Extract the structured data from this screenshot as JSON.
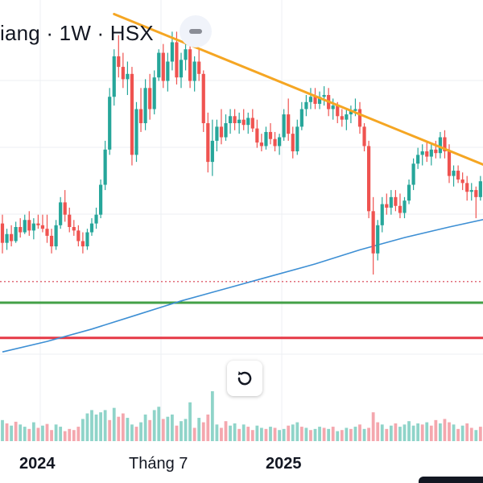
{
  "header": {
    "title": "iang · 1W · HSX"
  },
  "colors": {
    "up": "#26a69a",
    "down": "#ef5350",
    "vol_up": "#8fd4c9",
    "vol_down": "#f4a7ae",
    "trendline": "#f5a623",
    "ma": "#3d8fd4",
    "support": "#43a047",
    "resistance": "#e53946",
    "dotted": "#e26d7a",
    "grid": "#eceff3"
  },
  "x_axis": {
    "labels": [
      "2024",
      "Tháng 7",
      "2025"
    ]
  },
  "icons": {
    "collapse": "minus-icon",
    "reset": "refresh-icon"
  },
  "chart_data": {
    "type": "candlestick",
    "interval": "1W",
    "exchange": "HSX",
    "x_labels": [
      "2024",
      "Tháng 7",
      "2025"
    ],
    "candles": [
      {
        "o": 253,
        "h": 258,
        "l": 236,
        "c": 242
      },
      {
        "o": 242,
        "h": 250,
        "l": 238,
        "c": 247
      },
      {
        "o": 247,
        "h": 252,
        "l": 240,
        "c": 243
      },
      {
        "o": 243,
        "h": 254,
        "l": 242,
        "c": 251
      },
      {
        "o": 251,
        "h": 256,
        "l": 245,
        "c": 248
      },
      {
        "o": 248,
        "h": 258,
        "l": 247,
        "c": 255
      },
      {
        "o": 255,
        "h": 260,
        "l": 246,
        "c": 249
      },
      {
        "o": 249,
        "h": 256,
        "l": 244,
        "c": 253
      },
      {
        "o": 253,
        "h": 258,
        "l": 250,
        "c": 252
      },
      {
        "o": 252,
        "h": 258,
        "l": 248,
        "c": 250
      },
      {
        "o": 250,
        "h": 258,
        "l": 242,
        "c": 246
      },
      {
        "o": 246,
        "h": 250,
        "l": 236,
        "c": 240
      },
      {
        "o": 240,
        "h": 255,
        "l": 238,
        "c": 252
      },
      {
        "o": 252,
        "h": 268,
        "l": 250,
        "c": 265
      },
      {
        "o": 265,
        "h": 272,
        "l": 254,
        "c": 258
      },
      {
        "o": 258,
        "h": 262,
        "l": 248,
        "c": 251
      },
      {
        "o": 251,
        "h": 255,
        "l": 246,
        "c": 249
      },
      {
        "o": 249,
        "h": 252,
        "l": 240,
        "c": 243
      },
      {
        "o": 243,
        "h": 248,
        "l": 236,
        "c": 240
      },
      {
        "o": 240,
        "h": 250,
        "l": 238,
        "c": 248
      },
      {
        "o": 248,
        "h": 256,
        "l": 246,
        "c": 253
      },
      {
        "o": 253,
        "h": 262,
        "l": 250,
        "c": 258
      },
      {
        "o": 258,
        "h": 278,
        "l": 256,
        "c": 275
      },
      {
        "o": 275,
        "h": 300,
        "l": 272,
        "c": 295
      },
      {
        "o": 295,
        "h": 330,
        "l": 292,
        "c": 325
      },
      {
        "o": 325,
        "h": 352,
        "l": 320,
        "c": 348
      },
      {
        "o": 348,
        "h": 360,
        "l": 336,
        "c": 342
      },
      {
        "o": 342,
        "h": 350,
        "l": 330,
        "c": 335
      },
      {
        "o": 335,
        "h": 345,
        "l": 326,
        "c": 338
      },
      {
        "o": 338,
        "h": 342,
        "l": 286,
        "c": 292
      },
      {
        "o": 292,
        "h": 322,
        "l": 288,
        "c": 318
      },
      {
        "o": 318,
        "h": 330,
        "l": 305,
        "c": 310
      },
      {
        "o": 310,
        "h": 335,
        "l": 306,
        "c": 330
      },
      {
        "o": 330,
        "h": 338,
        "l": 312,
        "c": 318
      },
      {
        "o": 318,
        "h": 340,
        "l": 315,
        "c": 336
      },
      {
        "o": 336,
        "h": 352,
        "l": 334,
        "c": 350
      },
      {
        "o": 350,
        "h": 355,
        "l": 330,
        "c": 334
      },
      {
        "o": 334,
        "h": 350,
        "l": 328,
        "c": 345
      },
      {
        "o": 345,
        "h": 362,
        "l": 340,
        "c": 356
      },
      {
        "o": 356,
        "h": 362,
        "l": 332,
        "c": 336
      },
      {
        "o": 336,
        "h": 350,
        "l": 330,
        "c": 346
      },
      {
        "o": 346,
        "h": 358,
        "l": 340,
        "c": 352
      },
      {
        "o": 352,
        "h": 356,
        "l": 330,
        "c": 334
      },
      {
        "o": 334,
        "h": 348,
        "l": 328,
        "c": 345
      },
      {
        "o": 345,
        "h": 352,
        "l": 334,
        "c": 338
      },
      {
        "o": 338,
        "h": 340,
        "l": 305,
        "c": 310
      },
      {
        "o": 310,
        "h": 316,
        "l": 282,
        "c": 288
      },
      {
        "o": 288,
        "h": 312,
        "l": 280,
        "c": 300
      },
      {
        "o": 300,
        "h": 312,
        "l": 294,
        "c": 308
      },
      {
        "o": 308,
        "h": 318,
        "l": 298,
        "c": 302
      },
      {
        "o": 302,
        "h": 315,
        "l": 300,
        "c": 310
      },
      {
        "o": 310,
        "h": 318,
        "l": 304,
        "c": 314
      },
      {
        "o": 314,
        "h": 318,
        "l": 306,
        "c": 310
      },
      {
        "o": 310,
        "h": 316,
        "l": 304,
        "c": 312
      },
      {
        "o": 312,
        "h": 318,
        "l": 306,
        "c": 309
      },
      {
        "o": 309,
        "h": 316,
        "l": 304,
        "c": 313
      },
      {
        "o": 313,
        "h": 318,
        "l": 305,
        "c": 307
      },
      {
        "o": 307,
        "h": 312,
        "l": 296,
        "c": 299
      },
      {
        "o": 299,
        "h": 304,
        "l": 294,
        "c": 297
      },
      {
        "o": 297,
        "h": 308,
        "l": 295,
        "c": 305
      },
      {
        "o": 305,
        "h": 310,
        "l": 298,
        "c": 301
      },
      {
        "o": 301,
        "h": 305,
        "l": 294,
        "c": 297
      },
      {
        "o": 297,
        "h": 304,
        "l": 292,
        "c": 302
      },
      {
        "o": 302,
        "h": 318,
        "l": 300,
        "c": 315
      },
      {
        "o": 315,
        "h": 324,
        "l": 300,
        "c": 304
      },
      {
        "o": 304,
        "h": 308,
        "l": 290,
        "c": 294
      },
      {
        "o": 294,
        "h": 312,
        "l": 292,
        "c": 308
      },
      {
        "o": 308,
        "h": 322,
        "l": 306,
        "c": 318
      },
      {
        "o": 318,
        "h": 326,
        "l": 314,
        "c": 322
      },
      {
        "o": 322,
        "h": 330,
        "l": 318,
        "c": 325
      },
      {
        "o": 325,
        "h": 330,
        "l": 318,
        "c": 321
      },
      {
        "o": 321,
        "h": 328,
        "l": 318,
        "c": 325
      },
      {
        "o": 325,
        "h": 331,
        "l": 320,
        "c": 326
      },
      {
        "o": 326,
        "h": 330,
        "l": 314,
        "c": 318
      },
      {
        "o": 318,
        "h": 324,
        "l": 312,
        "c": 320
      },
      {
        "o": 320,
        "h": 322,
        "l": 310,
        "c": 314
      },
      {
        "o": 314,
        "h": 318,
        "l": 308,
        "c": 312
      },
      {
        "o": 312,
        "h": 318,
        "l": 306,
        "c": 315
      },
      {
        "o": 315,
        "h": 320,
        "l": 310,
        "c": 317
      },
      {
        "o": 317,
        "h": 324,
        "l": 314,
        "c": 318
      },
      {
        "o": 318,
        "h": 322,
        "l": 304,
        "c": 308
      },
      {
        "o": 308,
        "h": 310,
        "l": 294,
        "c": 297
      },
      {
        "o": 297,
        "h": 300,
        "l": 256,
        "c": 260
      },
      {
        "o": 260,
        "h": 268,
        "l": 224,
        "c": 236
      },
      {
        "o": 236,
        "h": 255,
        "l": 232,
        "c": 252
      },
      {
        "o": 252,
        "h": 268,
        "l": 248,
        "c": 264
      },
      {
        "o": 264,
        "h": 270,
        "l": 258,
        "c": 262
      },
      {
        "o": 262,
        "h": 272,
        "l": 258,
        "c": 268
      },
      {
        "o": 268,
        "h": 272,
        "l": 260,
        "c": 263
      },
      {
        "o": 263,
        "h": 270,
        "l": 256,
        "c": 259
      },
      {
        "o": 259,
        "h": 268,
        "l": 256,
        "c": 266
      },
      {
        "o": 266,
        "h": 278,
        "l": 264,
        "c": 275
      },
      {
        "o": 275,
        "h": 290,
        "l": 272,
        "c": 287
      },
      {
        "o": 287,
        "h": 296,
        "l": 284,
        "c": 292
      },
      {
        "o": 292,
        "h": 298,
        "l": 286,
        "c": 294
      },
      {
        "o": 294,
        "h": 300,
        "l": 288,
        "c": 291
      },
      {
        "o": 291,
        "h": 298,
        "l": 286,
        "c": 295
      },
      {
        "o": 295,
        "h": 300,
        "l": 290,
        "c": 293
      },
      {
        "o": 293,
        "h": 305,
        "l": 290,
        "c": 302
      },
      {
        "o": 302,
        "h": 306,
        "l": 290,
        "c": 294
      },
      {
        "o": 294,
        "h": 298,
        "l": 276,
        "c": 280
      },
      {
        "o": 280,
        "h": 286,
        "l": 274,
        "c": 283
      },
      {
        "o": 283,
        "h": 286,
        "l": 276,
        "c": 278
      },
      {
        "o": 278,
        "h": 282,
        "l": 272,
        "c": 276
      },
      {
        "o": 276,
        "h": 280,
        "l": 266,
        "c": 271
      },
      {
        "o": 271,
        "h": 276,
        "l": 266,
        "c": 272
      },
      {
        "o": 272,
        "h": 274,
        "l": 256,
        "c": 268
      },
      {
        "o": 268,
        "h": 280,
        "l": 266,
        "c": 277
      },
      {
        "o": 277,
        "h": 282,
        "l": 268,
        "c": 270
      },
      {
        "o": 270,
        "h": 288,
        "l": 266,
        "c": 285
      }
    ],
    "volume": [
      {
        "v": 38,
        "up": true
      },
      {
        "v": 32,
        "up": false
      },
      {
        "v": 28,
        "up": true
      },
      {
        "v": 35,
        "up": false
      },
      {
        "v": 30,
        "up": true
      },
      {
        "v": 26,
        "up": true
      },
      {
        "v": 22,
        "up": false
      },
      {
        "v": 34,
        "up": true
      },
      {
        "v": 24,
        "up": false
      },
      {
        "v": 28,
        "up": true
      },
      {
        "v": 31,
        "up": false
      },
      {
        "v": 20,
        "up": false
      },
      {
        "v": 30,
        "up": true
      },
      {
        "v": 26,
        "up": true
      },
      {
        "v": 18,
        "up": false
      },
      {
        "v": 22,
        "up": false
      },
      {
        "v": 20,
        "up": false
      },
      {
        "v": 26,
        "up": false
      },
      {
        "v": 40,
        "up": true
      },
      {
        "v": 50,
        "up": true
      },
      {
        "v": 56,
        "up": true
      },
      {
        "v": 48,
        "up": true
      },
      {
        "v": 52,
        "up": true
      },
      {
        "v": 56,
        "up": true
      },
      {
        "v": 38,
        "up": false
      },
      {
        "v": 60,
        "up": true
      },
      {
        "v": 44,
        "up": false
      },
      {
        "v": 50,
        "up": false
      },
      {
        "v": 42,
        "up": true
      },
      {
        "v": 30,
        "up": true
      },
      {
        "v": 26,
        "up": false
      },
      {
        "v": 34,
        "up": true
      },
      {
        "v": 48,
        "up": true
      },
      {
        "v": 38,
        "up": false
      },
      {
        "v": 56,
        "up": true
      },
      {
        "v": 62,
        "up": true
      },
      {
        "v": 40,
        "up": false
      },
      {
        "v": 44,
        "up": true
      },
      {
        "v": 48,
        "up": true
      },
      {
        "v": 28,
        "up": false
      },
      {
        "v": 36,
        "up": true
      },
      {
        "v": 40,
        "up": true
      },
      {
        "v": 70,
        "up": true
      },
      {
        "v": 24,
        "up": false
      },
      {
        "v": 42,
        "up": true
      },
      {
        "v": 34,
        "up": false
      },
      {
        "v": 48,
        "up": false
      },
      {
        "v": 90,
        "up": true
      },
      {
        "v": 30,
        "up": true
      },
      {
        "v": 24,
        "up": false
      },
      {
        "v": 36,
        "up": false
      },
      {
        "v": 28,
        "up": true
      },
      {
        "v": 32,
        "up": true
      },
      {
        "v": 22,
        "up": false
      },
      {
        "v": 30,
        "up": true
      },
      {
        "v": 26,
        "up": false
      },
      {
        "v": 20,
        "up": false
      },
      {
        "v": 28,
        "up": true
      },
      {
        "v": 24,
        "up": true
      },
      {
        "v": 22,
        "up": false
      },
      {
        "v": 26,
        "up": true
      },
      {
        "v": 24,
        "up": false
      },
      {
        "v": 20,
        "up": true
      },
      {
        "v": 22,
        "up": true
      },
      {
        "v": 28,
        "up": false
      },
      {
        "v": 30,
        "up": true
      },
      {
        "v": 34,
        "up": true
      },
      {
        "v": 26,
        "up": false
      },
      {
        "v": 24,
        "up": true
      },
      {
        "v": 20,
        "up": false
      },
      {
        "v": 22,
        "up": true
      },
      {
        "v": 26,
        "up": true
      },
      {
        "v": 24,
        "up": false
      },
      {
        "v": 22,
        "up": true
      },
      {
        "v": 26,
        "up": false
      },
      {
        "v": 18,
        "up": true
      },
      {
        "v": 20,
        "up": false
      },
      {
        "v": 24,
        "up": true
      },
      {
        "v": 22,
        "up": false
      },
      {
        "v": 26,
        "up": true
      },
      {
        "v": 30,
        "up": false
      },
      {
        "v": 22,
        "up": true
      },
      {
        "v": 24,
        "up": false
      },
      {
        "v": 52,
        "up": false
      },
      {
        "v": 34,
        "up": false
      },
      {
        "v": 30,
        "up": true
      },
      {
        "v": 22,
        "up": false
      },
      {
        "v": 28,
        "up": true
      },
      {
        "v": 32,
        "up": false
      },
      {
        "v": 26,
        "up": true
      },
      {
        "v": 30,
        "up": true
      },
      {
        "v": 36,
        "up": true
      },
      {
        "v": 28,
        "up": true
      },
      {
        "v": 32,
        "up": true
      },
      {
        "v": 30,
        "up": false
      },
      {
        "v": 34,
        "up": true
      },
      {
        "v": 28,
        "up": false
      },
      {
        "v": 38,
        "up": false
      },
      {
        "v": 32,
        "up": true
      },
      {
        "v": 40,
        "up": false
      },
      {
        "v": 34,
        "up": false
      },
      {
        "v": 30,
        "up": true
      },
      {
        "v": 22,
        "up": false
      },
      {
        "v": 28,
        "up": true
      },
      {
        "v": 32,
        "up": false
      },
      {
        "v": 24,
        "up": false
      },
      {
        "v": 20,
        "up": true
      },
      {
        "v": 26,
        "up": false
      },
      {
        "v": 36,
        "up": true
      },
      {
        "v": 28,
        "up": true
      }
    ],
    "moving_average": [
      [
        0,
        180
      ],
      [
        10,
        186
      ],
      [
        20,
        193
      ],
      [
        30,
        201
      ],
      [
        40,
        209
      ],
      [
        50,
        216
      ],
      [
        60,
        223
      ],
      [
        70,
        230
      ],
      [
        80,
        238
      ],
      [
        90,
        245
      ],
      [
        100,
        251
      ],
      [
        109,
        256
      ]
    ],
    "trendline": [
      [
        25,
        372
      ],
      [
        109,
        285
      ]
    ],
    "support_level": 208,
    "resistance_level": 188,
    "dotted_level": 220,
    "ylim": [
      165,
      380
    ],
    "grid": true
  }
}
